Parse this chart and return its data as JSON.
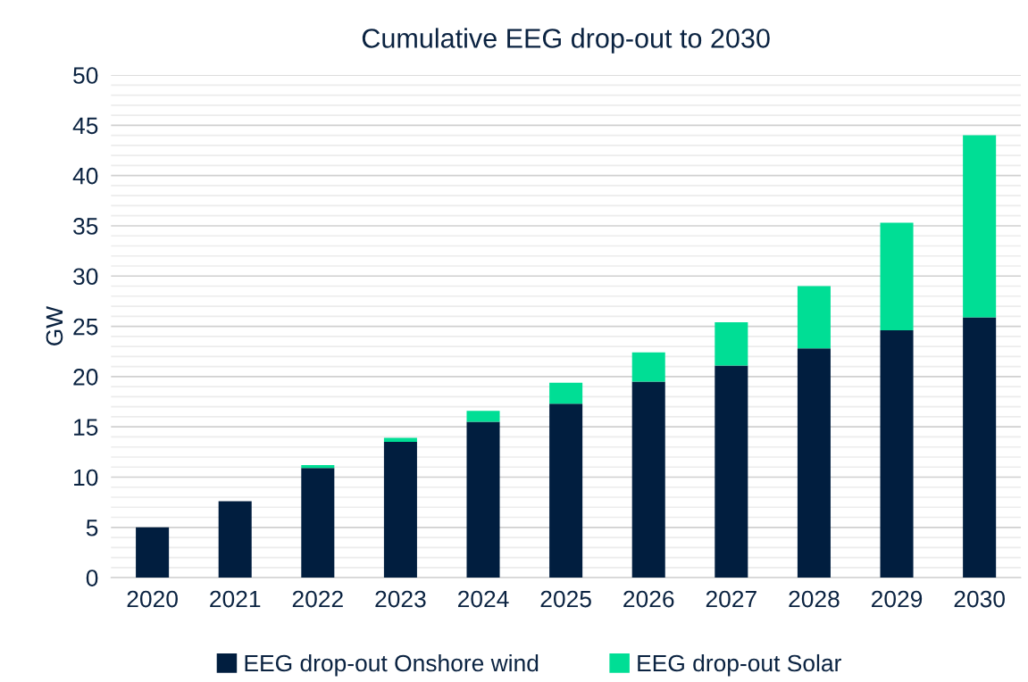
{
  "chart_data": {
    "type": "bar",
    "title": "Cumulative EEG drop-out to 2030",
    "ylabel": "GW",
    "categories": [
      "2020",
      "2021",
      "2022",
      "2023",
      "2024",
      "2025",
      "2026",
      "2027",
      "2028",
      "2029",
      "2030"
    ],
    "stacked": true,
    "series": [
      {
        "name": "EEG drop-out Onshore wind",
        "color": "#011e3f",
        "values": [
          5.0,
          7.6,
          10.9,
          13.5,
          15.5,
          17.3,
          19.5,
          21.1,
          22.8,
          24.6,
          25.9
        ]
      },
      {
        "name": "EEG drop-out Solar",
        "color": "#00de95",
        "values": [
          0,
          0,
          0.3,
          0.4,
          1.1,
          2.1,
          2.9,
          4.3,
          6.2,
          10.7,
          18.1
        ]
      }
    ],
    "ylim": [
      0,
      50
    ],
    "yticks": [
      0,
      {
        "value": 1,
        "label": null
      },
      {
        "value": 2,
        "label": null
      },
      {
        "value": 3,
        "label": null
      },
      {
        "value": 4,
        "label": null
      },
      5,
      {
        "value": 6,
        "label": null
      },
      {
        "value": 7,
        "label": null
      },
      {
        "value": 8,
        "label": null
      },
      {
        "value": 9,
        "label": null
      },
      10,
      {
        "value": 11,
        "label": null
      },
      {
        "value": 12,
        "label": null
      },
      {
        "value": 13,
        "label": null
      },
      {
        "value": 14,
        "label": null
      },
      15,
      {
        "value": 16,
        "label": null
      },
      {
        "value": 17,
        "label": null
      },
      {
        "value": 18,
        "label": null
      },
      {
        "value": 19,
        "label": null
      },
      20,
      {
        "value": 21,
        "label": null
      },
      {
        "value": 22,
        "label": null
      },
      {
        "value": 23,
        "label": null
      },
      {
        "value": 24,
        "label": null
      },
      25,
      {
        "value": 26,
        "label": null
      },
      {
        "value": 27,
        "label": null
      },
      {
        "value": 28,
        "label": null
      },
      {
        "value": 29,
        "label": null
      },
      30,
      {
        "value": 31,
        "label": null
      },
      {
        "value": 32,
        "label": null
      },
      {
        "value": 33,
        "label": null
      },
      {
        "value": 34,
        "label": null
      },
      35,
      {
        "value": 36,
        "label": null
      },
      {
        "value": 37,
        "label": null
      },
      {
        "value": 38,
        "label": null
      },
      {
        "value": 39,
        "label": null
      },
      40,
      {
        "value": 41,
        "label": null
      },
      {
        "value": 42,
        "label": null
      },
      {
        "value": 43,
        "label": null
      },
      {
        "value": 44,
        "label": null
      },
      45,
      {
        "value": 46,
        "label": null
      },
      {
        "value": 47,
        "label": null
      },
      {
        "value": 48,
        "label": null
      },
      {
        "value": 49,
        "label": null
      },
      50
    ],
    "grid": "y",
    "legend": "bottom"
  }
}
